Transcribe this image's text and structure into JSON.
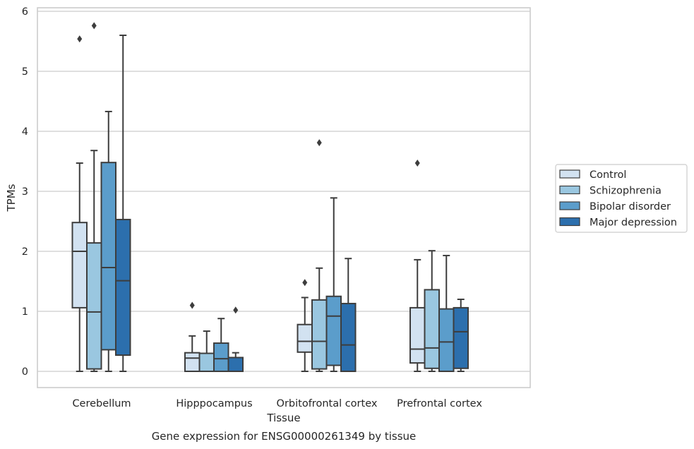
{
  "chart_data": {
    "type": "box",
    "xlabel": "Tissue",
    "ylabel": "TPMs",
    "caption": "Gene expression for ENSG00000261349 by tissue",
    "categories": [
      "Cerebellum",
      "Hipppocampus",
      "Orbitofrontal cortex",
      "Prefrontal cortex"
    ],
    "ylim": [
      -0.28,
      6.05
    ],
    "yticks": [
      0,
      1,
      2,
      3,
      4,
      5,
      6
    ],
    "grid": "horizontal",
    "legend_position": "right",
    "series": [
      {
        "name": "Control",
        "color": "#d2e2f1",
        "boxes": [
          {
            "whislo": 0.0,
            "q1": 1.06,
            "med": 2.0,
            "q3": 2.48,
            "whishi": 3.47,
            "fliers": [
              5.54
            ]
          },
          {
            "whislo": 0.0,
            "q1": 0.0,
            "med": 0.22,
            "q3": 0.31,
            "whishi": 0.59,
            "fliers": [
              1.1
            ]
          },
          {
            "whislo": 0.0,
            "q1": 0.32,
            "med": 0.5,
            "q3": 0.78,
            "whishi": 1.23,
            "fliers": [
              1.48
            ]
          },
          {
            "whislo": 0.0,
            "q1": 0.14,
            "med": 0.37,
            "q3": 1.06,
            "whishi": 1.86,
            "fliers": [
              3.47
            ]
          }
        ]
      },
      {
        "name": "Schizophrenia",
        "color": "#9ac7e0",
        "boxes": [
          {
            "whislo": 0.0,
            "q1": 0.04,
            "med": 0.99,
            "q3": 2.14,
            "whishi": 3.68,
            "fliers": [
              5.76
            ]
          },
          {
            "whislo": 0.0,
            "q1": 0.0,
            "med": 0.0,
            "q3": 0.3,
            "whishi": 0.67,
            "fliers": []
          },
          {
            "whislo": 0.0,
            "q1": 0.04,
            "med": 0.5,
            "q3": 1.19,
            "whishi": 1.72,
            "fliers": [
              3.81
            ]
          },
          {
            "whislo": 0.0,
            "q1": 0.05,
            "med": 0.39,
            "q3": 1.36,
            "whishi": 2.01,
            "fliers": []
          }
        ]
      },
      {
        "name": "Bipolar disorder",
        "color": "#5b9dcb",
        "boxes": [
          {
            "whislo": 0.0,
            "q1": 0.36,
            "med": 1.73,
            "q3": 3.48,
            "whishi": 4.33,
            "fliers": []
          },
          {
            "whislo": 0.0,
            "q1": 0.0,
            "med": 0.21,
            "q3": 0.47,
            "whishi": 0.88,
            "fliers": []
          },
          {
            "whislo": 0.0,
            "q1": 0.1,
            "med": 0.92,
            "q3": 1.25,
            "whishi": 2.89,
            "fliers": []
          },
          {
            "whislo": 0.0,
            "q1": 0.0,
            "med": 0.49,
            "q3": 1.04,
            "whishi": 1.93,
            "fliers": []
          }
        ]
      },
      {
        "name": "Major depression",
        "color": "#2c6fad",
        "boxes": [
          {
            "whislo": 0.0,
            "q1": 0.27,
            "med": 1.51,
            "q3": 2.53,
            "whishi": 5.6,
            "fliers": []
          },
          {
            "whislo": 0.0,
            "q1": 0.0,
            "med": 0.0,
            "q3": 0.23,
            "whishi": 0.31,
            "fliers": [
              1.02
            ]
          },
          {
            "whislo": 0.0,
            "q1": 0.0,
            "med": 0.44,
            "q3": 1.13,
            "whishi": 1.88,
            "fliers": []
          },
          {
            "whislo": 0.0,
            "q1": 0.05,
            "med": 0.66,
            "q3": 1.06,
            "whishi": 1.2,
            "fliers": []
          }
        ]
      }
    ]
  }
}
